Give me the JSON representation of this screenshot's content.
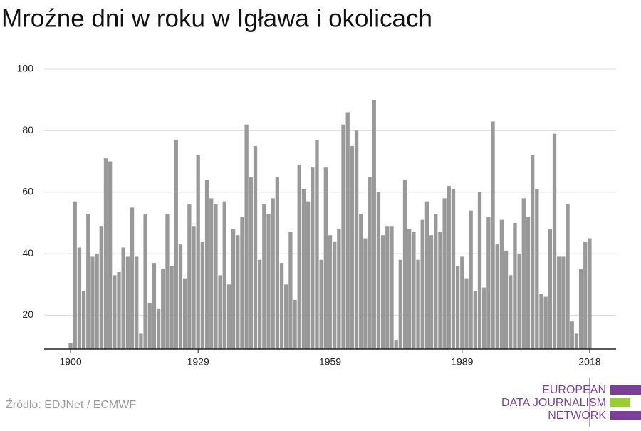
{
  "chart_data": {
    "type": "bar",
    "title": "Mroźne dni w roku w Igława i okolicach",
    "x": [
      1900,
      1901,
      1902,
      1903,
      1904,
      1905,
      1906,
      1907,
      1908,
      1909,
      1910,
      1911,
      1912,
      1913,
      1914,
      1915,
      1916,
      1917,
      1918,
      1919,
      1920,
      1921,
      1922,
      1923,
      1924,
      1925,
      1926,
      1927,
      1928,
      1929,
      1930,
      1931,
      1932,
      1933,
      1934,
      1935,
      1936,
      1937,
      1938,
      1939,
      1940,
      1941,
      1942,
      1943,
      1944,
      1945,
      1946,
      1947,
      1948,
      1949,
      1950,
      1951,
      1952,
      1953,
      1954,
      1955,
      1956,
      1957,
      1958,
      1959,
      1960,
      1961,
      1962,
      1963,
      1964,
      1965,
      1966,
      1967,
      1968,
      1969,
      1970,
      1971,
      1972,
      1973,
      1974,
      1975,
      1976,
      1977,
      1978,
      1979,
      1980,
      1981,
      1982,
      1983,
      1984,
      1985,
      1986,
      1987,
      1988,
      1989,
      1990,
      1991,
      1992,
      1993,
      1994,
      1995,
      1996,
      1997,
      1998,
      1999,
      2000,
      2001,
      2002,
      2003,
      2004,
      2005,
      2006,
      2007,
      2008,
      2009,
      2010,
      2011,
      2012,
      2013,
      2014,
      2015,
      2016,
      2017,
      2018
    ],
    "values": [
      11,
      57,
      42,
      28,
      53,
      39,
      40,
      49,
      71,
      70,
      33,
      34,
      42,
      39,
      55,
      39,
      14,
      53,
      24,
      37,
      22,
      35,
      53,
      36,
      77,
      43,
      32,
      56,
      49,
      72,
      44,
      64,
      58,
      56,
      33,
      57,
      30,
      48,
      46,
      52,
      82,
      65,
      75,
      38,
      56,
      53,
      58,
      65,
      37,
      30,
      47,
      25,
      69,
      61,
      57,
      68,
      77,
      38,
      68,
      46,
      44,
      48,
      82,
      86,
      75,
      80,
      53,
      45,
      65,
      90,
      60,
      46,
      49,
      49,
      12,
      38,
      64,
      48,
      47,
      38,
      51,
      57,
      46,
      53,
      47,
      58,
      62,
      61,
      36,
      39,
      32,
      54,
      28,
      60,
      29,
      52,
      83,
      43,
      51,
      41,
      33,
      50,
      40,
      58,
      52,
      72,
      61,
      27,
      26,
      48,
      79,
      39,
      39,
      56,
      18,
      14,
      35,
      44,
      45
    ],
    "color": "#999999",
    "xlim": [
      1894,
      2024
    ],
    "xticks": [
      1900,
      1929,
      1959,
      1989,
      2018
    ],
    "ylim": [
      9,
      100
    ],
    "yticks": [
      20,
      40,
      60,
      80,
      100
    ],
    "grid": true
  },
  "source": "Źródło: EDJNet / ECMWF",
  "logo": {
    "line1": "EUROPEAN",
    "line2": "DATA JOURNALISM",
    "line3": "NETWORK"
  }
}
